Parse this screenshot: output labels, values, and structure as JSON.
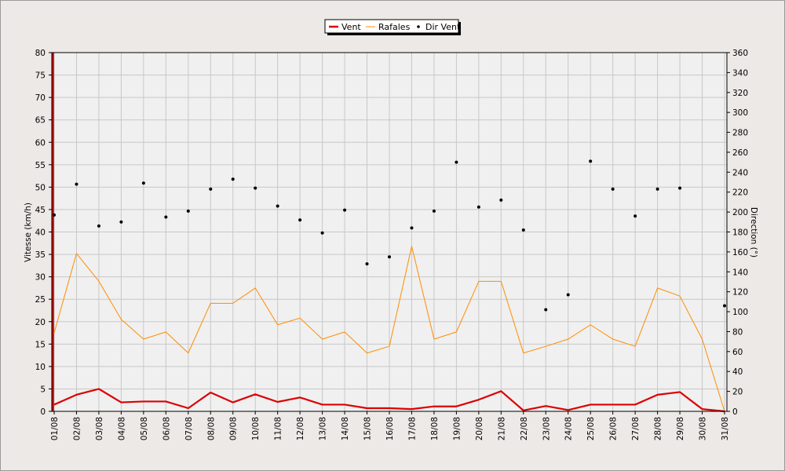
{
  "chart_data": {
    "type": "line",
    "legend_position": "top-center",
    "grid": true,
    "y_left": {
      "label": "Vitesse (km/h)",
      "range": [
        0,
        80
      ],
      "step": 5
    },
    "y_right": {
      "label": "Direction (°)",
      "range": [
        0,
        360
      ],
      "step": 20
    },
    "categories": [
      "01/08",
      "02/08",
      "03/08",
      "04/08",
      "05/08",
      "06/08",
      "07/08",
      "08/08",
      "09/08",
      "10/08",
      "11/08",
      "12/08",
      "13/08",
      "14/08",
      "15/08",
      "16/08",
      "17/08",
      "18/08",
      "19/08",
      "20/08",
      "21/08",
      "22/08",
      "23/08",
      "24/08",
      "25/08",
      "26/08",
      "27/08",
      "28/08",
      "29/08",
      "30/08",
      "31/08"
    ],
    "series": [
      {
        "name": "Vent",
        "axis": "left",
        "style": "line",
        "color": "#dd0000",
        "values": [
          1.5,
          3.7,
          5.0,
          2.0,
          2.2,
          2.2,
          0.7,
          4.2,
          2.0,
          3.8,
          2.1,
          3.1,
          1.5,
          1.5,
          0.7,
          0.7,
          0.5,
          1.1,
          1.1,
          2.6,
          4.5,
          0.2,
          1.2,
          0.3,
          1.5,
          1.5,
          1.5,
          3.7,
          4.3,
          0.5,
          0.0
        ]
      },
      {
        "name": "Rafales",
        "axis": "left",
        "style": "line",
        "color": "#ff8c00",
        "values": [
          17.5,
          35.2,
          29.0,
          20.5,
          16.1,
          17.7,
          13.0,
          24.1,
          24.1,
          27.5,
          19.3,
          20.8,
          16.1,
          17.7,
          13.0,
          14.5,
          36.8,
          16.1,
          17.7,
          29.0,
          29.0,
          13.0,
          14.5,
          16.1,
          19.3,
          16.1,
          14.5,
          27.5,
          25.7,
          16.1,
          0.0
        ]
      },
      {
        "name": "Dir Vent",
        "axis": "right",
        "style": "points",
        "color": "#000000",
        "values": [
          197,
          228,
          186,
          190,
          229,
          195,
          201,
          223,
          233,
          224,
          206,
          192,
          179,
          202,
          148,
          155,
          184,
          201,
          250,
          205,
          212,
          182,
          102,
          117,
          251,
          223,
          196,
          223,
          224,
          null,
          106
        ]
      }
    ]
  }
}
